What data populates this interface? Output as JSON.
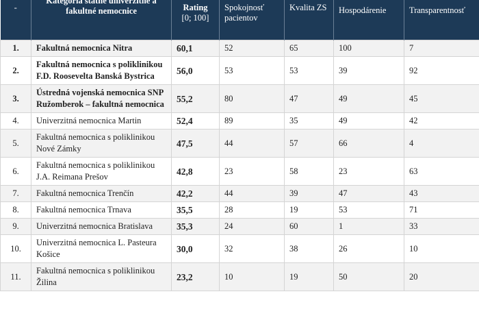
{
  "header": {
    "rank": "-",
    "category": "Kategória štátne univerzitné a fakultné nemocnice",
    "rating_title": "Rating",
    "rating_scale": "[0; 100]",
    "satisfaction": "Spokojnosť pacientov",
    "quality": "Kvalita ZS",
    "economy": "Hospodárenie",
    "transparency": "Transparentnosť"
  },
  "table": {
    "rows": [
      [
        "1.",
        "Fakultná nemocnica Nitra",
        "60,1",
        "52",
        "65",
        "100",
        "7"
      ],
      [
        "2.",
        "Fakultná nemocnica s poliklinikou F.D. Roosevelta Banská Bystrica",
        "56,0",
        "53",
        "53",
        "39",
        "92"
      ],
      [
        "3.",
        "Ústredná vojenská nemocnica SNP Ružomberok – fakultná nemocnica",
        "55,2",
        "80",
        "47",
        "49",
        "45"
      ],
      [
        "4.",
        "Univerzitná nemocnica Martin",
        "52,4",
        "89",
        "35",
        "49",
        "42"
      ],
      [
        "5.",
        "Fakultná nemocnica s poliklinikou Nové Zámky",
        "47,5",
        "44",
        "57",
        "66",
        "4"
      ],
      [
        "6.",
        "Fakultná nemocnica s poliklinikou J.A. Reimana Prešov",
        "42,8",
        "23",
        "58",
        "23",
        "63"
      ],
      [
        "7.",
        "Fakultná nemocnica Trenčín",
        "42,2",
        "44",
        "39",
        "47",
        "43"
      ],
      [
        "8.",
        "Fakultná nemocnica Trnava",
        "35,5",
        "28",
        "19",
        "53",
        "71"
      ],
      [
        "9.",
        "Univerzitná nemocnica Bratislava",
        "35,3",
        "24",
        "60",
        "1",
        "33"
      ],
      [
        "10.",
        "Univerzitná nemocnica L. Pasteura Košice",
        "30,0",
        "32",
        "38",
        "26",
        "10"
      ],
      [
        "11.",
        "Fakultná nemocnica s poliklinikou Žilina",
        "23,2",
        "10",
        "19",
        "50",
        "20"
      ]
    ]
  }
}
